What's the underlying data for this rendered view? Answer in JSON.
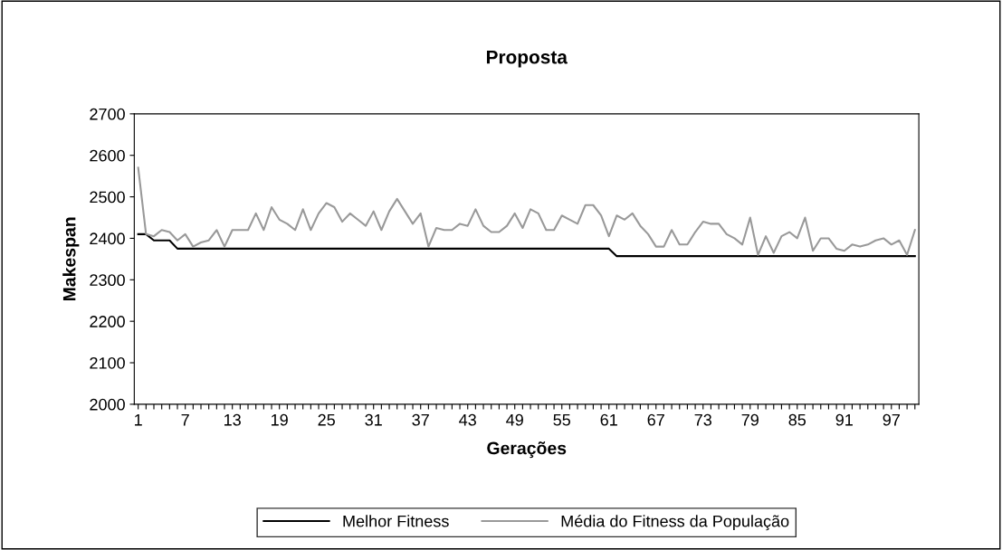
{
  "chart_data": {
    "type": "line",
    "title": "Proposta",
    "xlabel": "Gerações",
    "ylabel": "Makespan",
    "categories": [
      "1",
      null,
      null,
      null,
      null,
      null,
      "7",
      null,
      null,
      null,
      null,
      null,
      "13",
      null,
      null,
      null,
      null,
      null,
      "19",
      null,
      null,
      null,
      null,
      null,
      "25",
      null,
      null,
      null,
      null,
      null,
      "31",
      null,
      null,
      null,
      null,
      null,
      "37",
      null,
      null,
      null,
      null,
      null,
      "43",
      null,
      null,
      null,
      null,
      null,
      "49",
      null,
      null,
      null,
      null,
      null,
      "55",
      null,
      null,
      null,
      null,
      null,
      "61",
      null,
      null,
      null,
      null,
      null,
      "67",
      null,
      null,
      null,
      null,
      null,
      "73",
      null,
      null,
      null,
      null,
      null,
      "79",
      null,
      null,
      null,
      null,
      null,
      "85",
      null,
      null,
      null,
      null,
      null,
      "91",
      null,
      null,
      null,
      null,
      null,
      "97",
      null,
      null,
      null
    ],
    "series": [
      {
        "name": "Melhor Fitness",
        "color": "#000000",
        "values": [
          2410,
          2410,
          2395,
          2395,
          2395,
          2375,
          2375,
          2375,
          2375,
          2375,
          2375,
          2375,
          2375,
          2375,
          2375,
          2375,
          2375,
          2375,
          2375,
          2375,
          2375,
          2375,
          2375,
          2375,
          2375,
          2375,
          2375,
          2375,
          2375,
          2375,
          2375,
          2375,
          2375,
          2375,
          2375,
          2375,
          2375,
          2375,
          2375,
          2375,
          2375,
          2375,
          2375,
          2375,
          2375,
          2375,
          2375,
          2375,
          2375,
          2375,
          2375,
          2375,
          2375,
          2375,
          2375,
          2375,
          2375,
          2375,
          2375,
          2375,
          2375,
          2357,
          2357,
          2357,
          2357,
          2357,
          2357,
          2357,
          2357,
          2357,
          2357,
          2357,
          2357,
          2357,
          2357,
          2357,
          2357,
          2357,
          2357,
          2357,
          2357,
          2357,
          2357,
          2357,
          2357,
          2357,
          2357,
          2357,
          2357,
          2357,
          2357,
          2357,
          2357,
          2357,
          2357,
          2357,
          2357,
          2357,
          2357,
          2357
        ]
      },
      {
        "name": "Média do Fitness da População",
        "color": "#999999",
        "values": [
          2570,
          2410,
          2405,
          2420,
          2415,
          2395,
          2410,
          2380,
          2390,
          2395,
          2420,
          2380,
          2420,
          2420,
          2420,
          2460,
          2420,
          2475,
          2445,
          2435,
          2420,
          2470,
          2420,
          2460,
          2485,
          2475,
          2440,
          2460,
          2445,
          2430,
          2465,
          2420,
          2465,
          2495,
          2465,
          2435,
          2460,
          2380,
          2425,
          2420,
          2420,
          2435,
          2430,
          2470,
          2430,
          2415,
          2415,
          2430,
          2460,
          2425,
          2470,
          2460,
          2420,
          2420,
          2455,
          2445,
          2435,
          2480,
          2480,
          2455,
          2405,
          2455,
          2445,
          2460,
          2430,
          2410,
          2380,
          2380,
          2420,
          2385,
          2385,
          2415,
          2440,
          2435,
          2435,
          2410,
          2400,
          2385,
          2450,
          2360,
          2405,
          2365,
          2405,
          2415,
          2400,
          2450,
          2370,
          2400,
          2400,
          2375,
          2370,
          2385,
          2380,
          2385,
          2395,
          2400,
          2385,
          2395,
          2360,
          2420
        ]
      }
    ],
    "ylim": [
      2000,
      2700
    ],
    "yticks": [
      2000,
      2100,
      2200,
      2300,
      2400,
      2500,
      2600,
      2700
    ],
    "legend": "bottom",
    "grid": false,
    "marker": "none",
    "line_style": "solid"
  }
}
